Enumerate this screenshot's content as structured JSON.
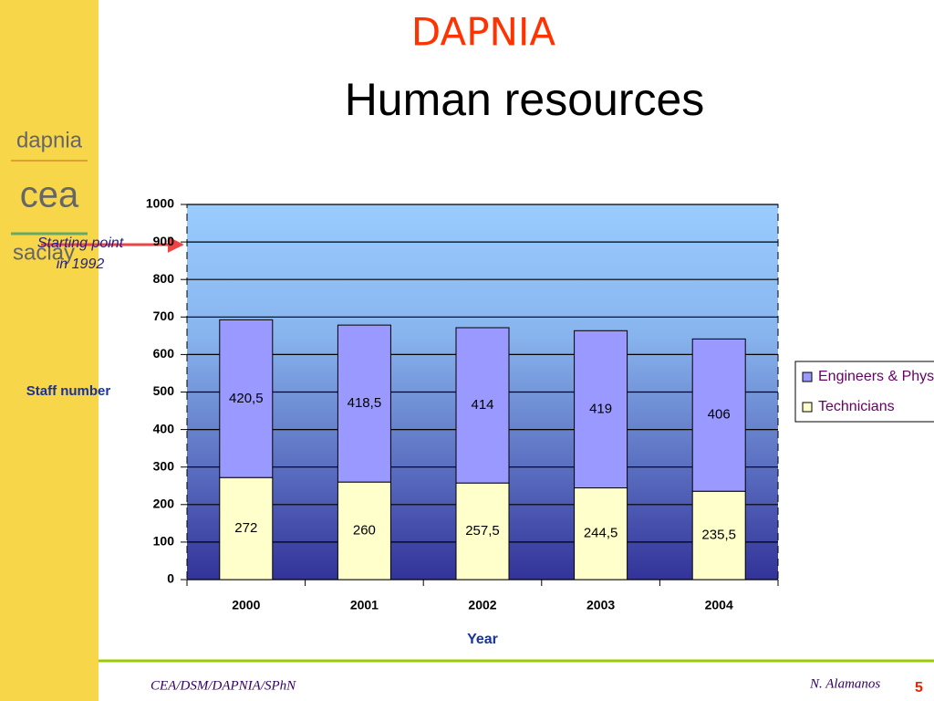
{
  "slide": {
    "header": "DAPNIA",
    "title": "Human resources",
    "logos": [
      "dapnia",
      "cea",
      "saclay"
    ],
    "annotation": [
      "Starting point",
      "in 1992"
    ],
    "footer_left": "CEA/DSM/DAPNIA/SPhN",
    "footer_right": "N. Alamanos",
    "page_number": "5"
  },
  "chart_data": {
    "type": "bar",
    "stacked": true,
    "categories": [
      "2000",
      "2001",
      "2002",
      "2003",
      "2004"
    ],
    "series": [
      {
        "name": "Technicians",
        "color": "#ffffcc",
        "values": [
          272,
          260,
          257.5,
          244.5,
          235.5
        ],
        "value_labels": [
          "272",
          "260",
          "257,5",
          "244,5",
          "235,5"
        ]
      },
      {
        "name": "Engineers & Physicists",
        "color": "#9999ff",
        "values": [
          420.5,
          418.5,
          414,
          419,
          406
        ],
        "value_labels": [
          "420,5",
          "418,5",
          "414",
          "419",
          "406"
        ]
      }
    ],
    "ylim": [
      0,
      1000
    ],
    "yticks": [
      0,
      100,
      200,
      300,
      400,
      500,
      600,
      700,
      800,
      900,
      1000
    ],
    "x_label": "Year",
    "y_label": "Staff number",
    "grid": true,
    "legend": "right"
  }
}
